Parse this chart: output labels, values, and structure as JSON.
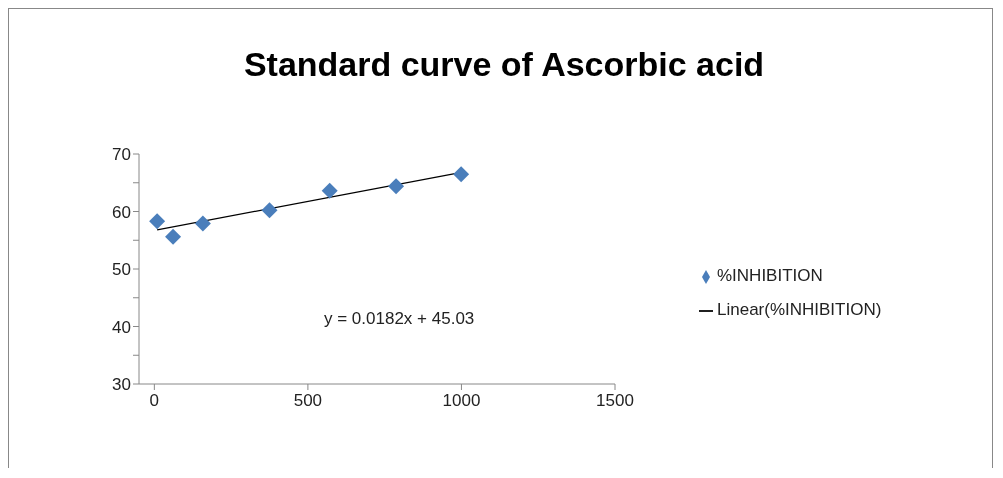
{
  "chart_data": {
    "type": "scatter",
    "title": "Standard curve of Ascorbic acid",
    "series": [
      {
        "name": "%INHIBITION",
        "color": "#4a7ebb",
        "x": [
          9,
          61,
          158,
          375,
          571,
          787,
          999
        ],
        "values": [
          58.3,
          55.6,
          57.9,
          60.2,
          63.6,
          64.4,
          66.5
        ],
        "marker": "diamond"
      },
      {
        "name": "Linear(%INHIBITION)",
        "type": "line",
        "color": "#000000",
        "x": [
          9,
          1000
        ],
        "values": [
          56.8,
          66.8
        ],
        "marker": "none"
      }
    ],
    "annotations": [
      "y = 0.0182x + 45.03"
    ],
    "legend": "right",
    "grid": false,
    "xlim": [
      -50,
      1500
    ],
    "xticks": [
      0,
      500,
      1000,
      1500
    ],
    "ylim": [
      30,
      70
    ],
    "yticks": [
      30,
      {
        "value": 35,
        "label": null
      },
      40,
      {
        "value": 45,
        "label": null
      },
      50,
      {
        "value": 55,
        "label": null
      },
      60,
      {
        "value": 65,
        "label": null
      },
      70
    ]
  }
}
